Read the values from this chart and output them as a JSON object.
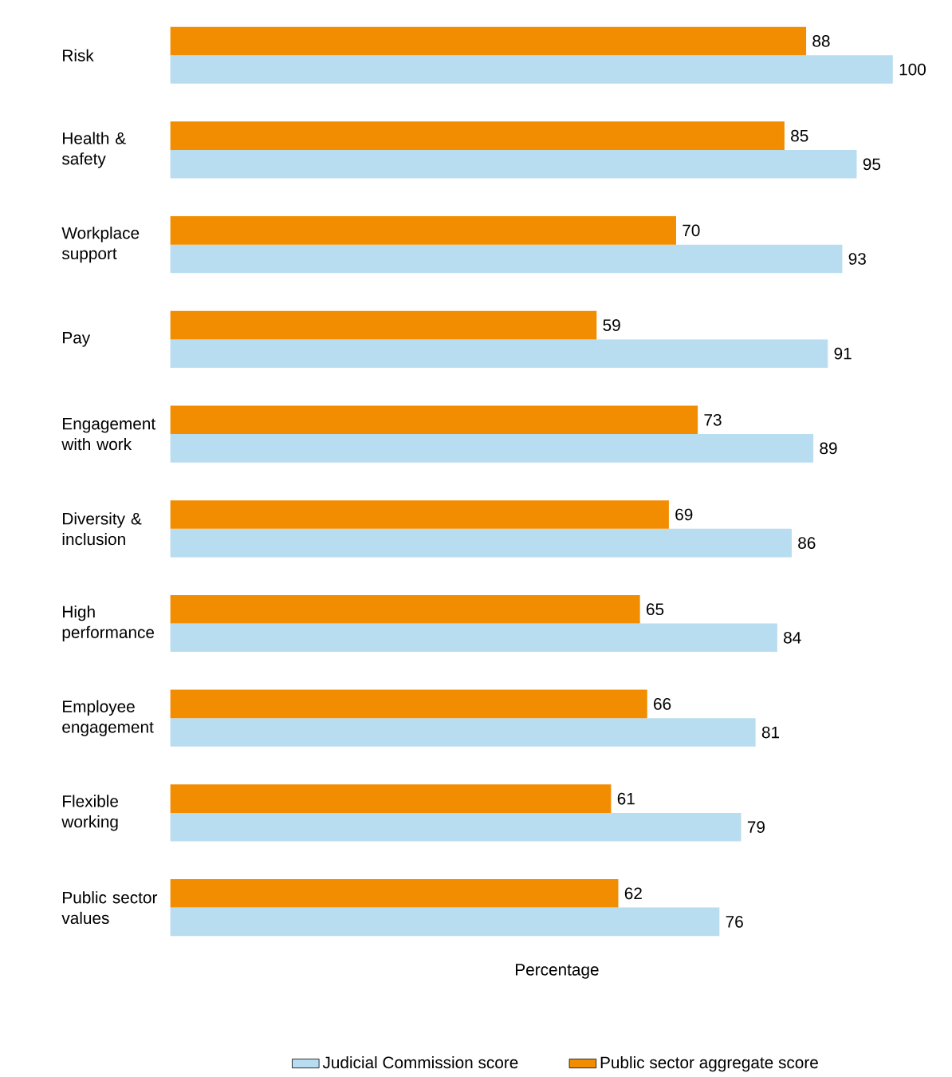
{
  "chart_data": {
    "type": "bar",
    "orientation": "horizontal",
    "xlabel": "Percentage",
    "relative": false,
    "categories": [
      "Risk",
      "Health & safety",
      "Workplace support",
      "Pay",
      "Engagement with work",
      "Diversity & inclusion",
      "High performance",
      "Employee engagement",
      "Flexible working",
      "Public sector values"
    ],
    "series": [
      {
        "name": "Judicial Commission score",
        "color": "#b8dcf0",
        "values": [
          100,
          95,
          93,
          91,
          89,
          86,
          84,
          81,
          79,
          76
        ]
      },
      {
        "name": "Public sector aggregate score",
        "color": "#f28c00",
        "values": [
          88,
          85,
          70,
          59,
          73,
          69,
          65,
          66,
          61,
          62
        ]
      }
    ],
    "data_labels": true,
    "legend": "bottom"
  }
}
